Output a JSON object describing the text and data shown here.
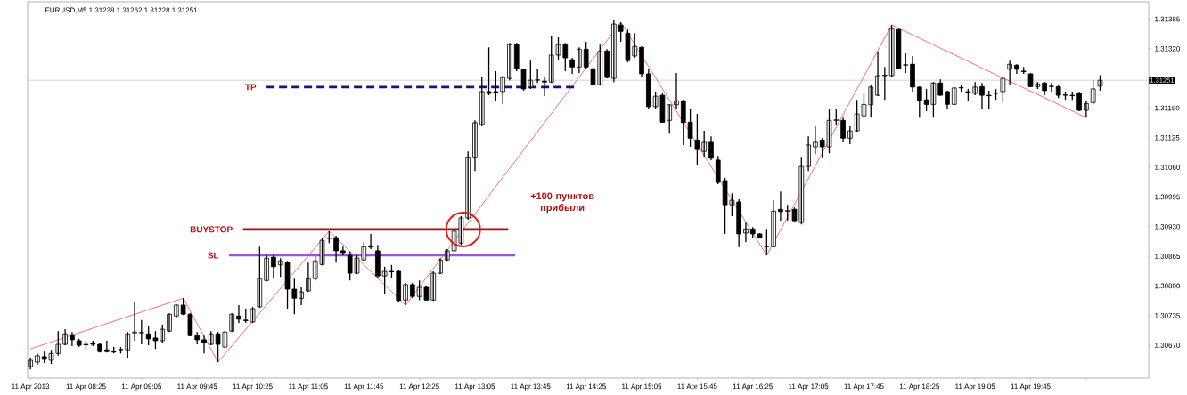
{
  "chart_data": {
    "type": "candlestick",
    "title": "EURUSD,M5 1.31238 1.31262 1.31228 1.31251",
    "x": [
      "2013-04-11T07:45",
      "2013-04-11T07:50",
      "2013-04-11T07:55",
      "2013-04-11T08:00",
      "2013-04-11T08:05",
      "2013-04-11T08:10",
      "2013-04-11T08:15",
      "2013-04-11T08:20",
      "2013-04-11T08:25",
      "2013-04-11T08:30",
      "2013-04-11T08:35",
      "2013-04-11T08:40",
      "2013-04-11T08:45",
      "2013-04-11T08:50",
      "2013-04-11T08:55",
      "2013-04-11T09:00",
      "2013-04-11T09:05",
      "2013-04-11T09:10",
      "2013-04-11T09:15",
      "2013-04-11T09:20",
      "2013-04-11T09:25",
      "2013-04-11T09:30",
      "2013-04-11T09:35",
      "2013-04-11T09:40",
      "2013-04-11T09:45",
      "2013-04-11T09:50",
      "2013-04-11T09:55",
      "2013-04-11T10:00",
      "2013-04-11T10:05",
      "2013-04-11T10:10",
      "2013-04-11T10:15",
      "2013-04-11T10:20",
      "2013-04-11T10:25",
      "2013-04-11T10:30",
      "2013-04-11T10:35",
      "2013-04-11T10:40",
      "2013-04-11T10:45",
      "2013-04-11T10:50",
      "2013-04-11T10:55",
      "2013-04-11T11:00",
      "2013-04-11T11:05",
      "2013-04-11T11:10",
      "2013-04-11T11:15",
      "2013-04-11T11:20",
      "2013-04-11T11:25",
      "2013-04-11T11:30",
      "2013-04-11T11:35",
      "2013-04-11T11:40",
      "2013-04-11T11:45",
      "2013-04-11T11:50",
      "2013-04-11T11:55",
      "2013-04-11T12:00",
      "2013-04-11T12:05",
      "2013-04-11T12:10",
      "2013-04-11T12:15",
      "2013-04-11T12:20",
      "2013-04-11T12:25",
      "2013-04-11T12:30",
      "2013-04-11T12:35",
      "2013-04-11T12:40",
      "2013-04-11T12:45",
      "2013-04-11T12:50",
      "2013-04-11T12:55",
      "2013-04-11T13:00",
      "2013-04-11T13:05",
      "2013-04-11T13:10",
      "2013-04-11T13:15",
      "2013-04-11T13:20",
      "2013-04-11T13:25",
      "2013-04-11T13:30",
      "2013-04-11T13:35",
      "2013-04-11T13:40",
      "2013-04-11T13:45",
      "2013-04-11T13:50",
      "2013-04-11T13:55",
      "2013-04-11T14:00",
      "2013-04-11T14:05",
      "2013-04-11T14:10",
      "2013-04-11T14:15",
      "2013-04-11T14:20",
      "2013-04-11T14:25",
      "2013-04-11T14:30",
      "2013-04-11T14:35",
      "2013-04-11T14:40",
      "2013-04-11T14:45",
      "2013-04-11T14:50",
      "2013-04-11T14:55",
      "2013-04-11T15:00",
      "2013-04-11T15:05",
      "2013-04-11T15:10",
      "2013-04-11T15:15",
      "2013-04-11T15:20",
      "2013-04-11T15:25",
      "2013-04-11T15:30",
      "2013-04-11T15:35",
      "2013-04-11T15:40",
      "2013-04-11T15:45",
      "2013-04-11T15:50",
      "2013-04-11T15:55",
      "2013-04-11T16:00",
      "2013-04-11T16:05",
      "2013-04-11T16:10",
      "2013-04-11T16:15",
      "2013-04-11T16:20",
      "2013-04-11T16:25",
      "2013-04-11T16:30",
      "2013-04-11T16:35",
      "2013-04-11T16:40",
      "2013-04-11T16:45",
      "2013-04-11T16:50",
      "2013-04-11T16:55",
      "2013-04-11T17:00",
      "2013-04-11T17:05",
      "2013-04-11T17:10",
      "2013-04-11T17:15",
      "2013-04-11T17:20",
      "2013-04-11T17:25",
      "2013-04-11T17:30",
      "2013-04-11T17:35",
      "2013-04-11T17:40",
      "2013-04-11T17:45",
      "2013-04-11T17:50",
      "2013-04-11T17:55",
      "2013-04-11T18:00",
      "2013-04-11T18:05",
      "2013-04-11T18:10",
      "2013-04-11T18:15",
      "2013-04-11T18:20",
      "2013-04-11T18:25",
      "2013-04-11T18:30",
      "2013-04-11T18:35",
      "2013-04-11T18:40",
      "2013-04-11T18:45",
      "2013-04-11T18:50",
      "2013-04-11T18:55",
      "2013-04-11T19:00",
      "2013-04-11T19:05",
      "2013-04-11T19:10",
      "2013-04-11T19:15",
      "2013-04-11T19:20",
      "2013-04-11T19:25",
      "2013-04-11T19:30",
      "2013-04-11T19:35",
      "2013-04-11T19:40",
      "2013-04-11T19:45",
      "2013-04-11T19:50",
      "2013-04-11T19:55",
      "2013-04-11T20:00",
      "2013-04-11T20:05",
      "2013-04-11T20:10",
      "2013-04-11T20:15",
      "2013-04-11T20:20",
      "2013-04-11T20:25",
      "2013-04-11T20:30",
      "2013-04-11T20:35"
    ],
    "ohlc": [
      [
        1.30623,
        1.30643,
        1.30617,
        1.30637
      ],
      [
        1.30633,
        1.30652,
        1.30627,
        1.30647
      ],
      [
        1.30645,
        1.30656,
        1.30631,
        1.30639
      ],
      [
        1.30637,
        1.3066,
        1.30629,
        1.30652
      ],
      [
        1.30652,
        1.30701,
        1.30647,
        1.30672
      ],
      [
        1.30672,
        1.30705,
        1.3067,
        1.30695
      ],
      [
        1.30693,
        1.30699,
        1.30668,
        1.30682
      ],
      [
        1.3068,
        1.30684,
        1.30666,
        1.3067
      ],
      [
        1.30672,
        1.3068,
        1.3066,
        1.30671
      ],
      [
        1.30674,
        1.3068,
        1.30668,
        1.30672
      ],
      [
        1.30672,
        1.30676,
        1.30654,
        1.30656
      ],
      [
        1.3066,
        1.3068,
        1.30654,
        1.30656
      ],
      [
        1.30656,
        1.30666,
        1.30652,
        1.30655
      ],
      [
        1.3066,
        1.30666,
        1.30652,
        1.30661
      ],
      [
        1.3066,
        1.30699,
        1.30643,
        1.30695
      ],
      [
        1.30697,
        1.30766,
        1.3068,
        1.30699
      ],
      [
        1.30697,
        1.30725,
        1.30672,
        1.30698
      ],
      [
        1.30695,
        1.30711,
        1.3067,
        1.30684
      ],
      [
        1.30686,
        1.30701,
        1.30662,
        1.3068
      ],
      [
        1.3068,
        1.30715,
        1.30676,
        1.30705
      ],
      [
        1.30701,
        1.3074,
        1.30699,
        1.30738
      ],
      [
        1.30734,
        1.3076,
        1.3073,
        1.30758
      ],
      [
        1.30758,
        1.30773,
        1.30736,
        1.30738
      ],
      [
        1.30738,
        1.3074,
        1.3069,
        1.30691
      ],
      [
        1.30691,
        1.30699,
        1.30672,
        1.30682
      ],
      [
        1.30682,
        1.30691,
        1.30652,
        1.30676
      ],
      [
        1.30672,
        1.30701,
        1.3067,
        1.30695
      ],
      [
        1.30695,
        1.30699,
        1.30633,
        1.30672
      ],
      [
        1.30666,
        1.30701,
        1.30664,
        1.30699
      ],
      [
        1.30701,
        1.3074,
        1.30699,
        1.30738
      ],
      [
        1.30734,
        1.30758,
        1.30719,
        1.30727
      ],
      [
        1.30725,
        1.3075,
        1.30719,
        1.30724
      ],
      [
        1.30721,
        1.30754,
        1.30719,
        1.3075
      ],
      [
        1.30754,
        1.30886,
        1.30752,
        1.30816
      ],
      [
        1.30812,
        1.30867,
        1.3081,
        1.30861
      ],
      [
        1.30863,
        1.30867,
        1.30816,
        1.30842
      ],
      [
        1.30846,
        1.30861,
        1.3082,
        1.30855
      ],
      [
        1.30851,
        1.30855,
        1.3075,
        1.30793
      ],
      [
        1.30793,
        1.30816,
        1.30738,
        1.30773
      ],
      [
        1.30773,
        1.30797,
        1.30758,
        1.30787
      ],
      [
        1.30789,
        1.30851,
        1.30787,
        1.30816
      ],
      [
        1.30816,
        1.30865,
        1.30812,
        1.30855
      ],
      [
        1.30847,
        1.30906,
        1.30845,
        1.309
      ],
      [
        1.30904,
        1.3092,
        1.30894,
        1.30905
      ],
      [
        1.30906,
        1.3091,
        1.30851,
        1.30877
      ],
      [
        1.30877,
        1.30886,
        1.30867,
        1.30873
      ],
      [
        1.30867,
        1.30875,
        1.30812,
        1.30828
      ],
      [
        1.30828,
        1.30867,
        1.30826,
        1.30861
      ],
      [
        1.30857,
        1.30896,
        1.30855,
        1.30886
      ],
      [
        1.30888,
        1.30914,
        1.30881,
        1.30885
      ],
      [
        1.30877,
        1.3089,
        1.30818,
        1.30822
      ],
      [
        1.30822,
        1.30842,
        1.30783,
        1.30832
      ],
      [
        1.30832,
        1.30846,
        1.30818,
        1.30831
      ],
      [
        1.30832,
        1.30836,
        1.30764,
        1.30768
      ],
      [
        1.30769,
        1.30807,
        1.30758,
        1.30803
      ],
      [
        1.30803,
        1.30807,
        1.30773,
        1.30777
      ],
      [
        1.30777,
        1.30812,
        1.30769,
        1.30797
      ],
      [
        1.30797,
        1.30799,
        1.30768,
        1.30769
      ],
      [
        1.30769,
        1.30832,
        1.30767,
        1.30828
      ],
      [
        1.30828,
        1.30861,
        1.30826,
        1.30857
      ],
      [
        1.30857,
        1.30881,
        1.30855,
        1.30877
      ],
      [
        1.30877,
        1.30925,
        1.30875,
        1.3092
      ],
      [
        1.30894,
        1.30953,
        1.3089,
        1.30949
      ],
      [
        1.30949,
        1.31095,
        1.30945,
        1.31081
      ],
      [
        1.31081,
        1.31163,
        1.31052,
        1.31158
      ],
      [
        1.31154,
        1.31257,
        1.3115,
        1.31226
      ],
      [
        1.31226,
        1.31323,
        1.31218,
        1.31222
      ],
      [
        1.31226,
        1.31271,
        1.31206,
        1.31224
      ],
      [
        1.31226,
        1.31261,
        1.31198,
        1.31257
      ],
      [
        1.31255,
        1.31333,
        1.31251,
        1.31329
      ],
      [
        1.31329,
        1.31333,
        1.31271,
        1.31276
      ],
      [
        1.31275,
        1.31276,
        1.31228,
        1.31232
      ],
      [
        1.31236,
        1.31294,
        1.31232,
        1.31251
      ],
      [
        1.31251,
        1.31276,
        1.31245,
        1.31252
      ],
      [
        1.31249,
        1.31257,
        1.31216,
        1.31247
      ],
      [
        1.31247,
        1.31349,
        1.31245,
        1.31306
      ],
      [
        1.31306,
        1.31345,
        1.31294,
        1.31329
      ],
      [
        1.31329,
        1.31333,
        1.31271,
        1.313
      ],
      [
        1.31296,
        1.313,
        1.31265,
        1.3128
      ],
      [
        1.3128,
        1.31323,
        1.31267,
        1.31319
      ],
      [
        1.31319,
        1.31335,
        1.31276,
        1.3128
      ],
      [
        1.31276,
        1.3128,
        1.31239,
        1.31241
      ],
      [
        1.31241,
        1.31329,
        1.31239,
        1.31314
      ],
      [
        1.31315,
        1.31319,
        1.31255,
        1.31257
      ],
      [
        1.31255,
        1.31382,
        1.31247,
        1.31374
      ],
      [
        1.31372,
        1.31378,
        1.31335,
        1.31358
      ],
      [
        1.31354,
        1.31362,
        1.3129,
        1.31294
      ],
      [
        1.31304,
        1.31354,
        1.313,
        1.31325
      ],
      [
        1.31323,
        1.31325,
        1.31257,
        1.31265
      ],
      [
        1.31265,
        1.31275,
        1.31187,
        1.31193
      ],
      [
        1.31193,
        1.31226,
        1.31189,
        1.31216
      ],
      [
        1.31218,
        1.31222,
        1.31158,
        1.31159
      ],
      [
        1.31163,
        1.31198,
        1.31134,
        1.31197
      ],
      [
        1.31197,
        1.31267,
        1.31187,
        1.31206
      ],
      [
        1.31206,
        1.31208,
        1.31109,
        1.31158
      ],
      [
        1.31159,
        1.31189,
        1.31105,
        1.31124
      ],
      [
        1.3112,
        1.31177,
        1.31066,
        1.31099
      ],
      [
        1.31095,
        1.3114,
        1.31081,
        1.31115
      ],
      [
        1.31115,
        1.31128,
        1.31076,
        1.3108
      ],
      [
        1.31076,
        1.31085,
        1.31023,
        1.31027
      ],
      [
        1.31031,
        1.31037,
        1.30914,
        1.30978
      ],
      [
        1.30978,
        1.31003,
        1.30953,
        1.30988
      ],
      [
        1.30984,
        1.3099,
        1.30885,
        1.30914
      ],
      [
        1.30916,
        1.30939,
        1.30896,
        1.30925
      ],
      [
        1.30925,
        1.30929,
        1.30906,
        1.30914
      ],
      [
        1.30914,
        1.30916,
        1.30904,
        1.30906
      ],
      [
        1.30886,
        1.30925,
        1.30867,
        1.30887
      ],
      [
        1.30886,
        1.30988,
        1.30885,
        1.30964
      ],
      [
        1.30968,
        1.31007,
        1.30943,
        1.30963
      ],
      [
        1.30964,
        1.30978,
        1.30943,
        1.30965
      ],
      [
        1.30968,
        1.30972,
        1.30939,
        1.30943
      ],
      [
        1.30939,
        1.31081,
        1.30935,
        1.31062
      ],
      [
        1.31062,
        1.31128,
        1.31052,
        1.31109
      ],
      [
        1.31105,
        1.3115,
        1.31089,
        1.31115
      ],
      [
        1.3112,
        1.31124,
        1.3108,
        1.31105
      ],
      [
        1.31105,
        1.31187,
        1.31091,
        1.31163
      ],
      [
        1.31163,
        1.31187,
        1.31154,
        1.31164
      ],
      [
        1.31163,
        1.31169,
        1.31115,
        1.31124
      ],
      [
        1.31124,
        1.3115,
        1.31111,
        1.3114
      ],
      [
        1.3114,
        1.31208,
        1.31138,
        1.31177
      ],
      [
        1.31173,
        1.31222,
        1.31169,
        1.31198
      ],
      [
        1.31197,
        1.31241,
        1.31169,
        1.31236
      ],
      [
        1.31218,
        1.31314,
        1.31216,
        1.31261
      ],
      [
        1.31261,
        1.3128,
        1.31208,
        1.31262
      ],
      [
        1.31261,
        1.31372,
        1.31257,
        1.31364
      ],
      [
        1.31362,
        1.31364,
        1.31275,
        1.31276
      ],
      [
        1.31284,
        1.3131,
        1.31267,
        1.31285
      ],
      [
        1.31286,
        1.31304,
        1.31226,
        1.31236
      ],
      [
        1.31236,
        1.31237,
        1.31169,
        1.31206
      ],
      [
        1.31208,
        1.31232,
        1.31183,
        1.31198
      ],
      [
        1.31198,
        1.31247,
        1.31169,
        1.31245
      ],
      [
        1.31245,
        1.31253,
        1.31217,
        1.31218
      ],
      [
        1.31226,
        1.31228,
        1.31187,
        1.31198
      ],
      [
        1.31198,
        1.31236,
        1.31197,
        1.31234
      ],
      [
        1.31234,
        1.31241,
        1.31226,
        1.31235
      ],
      [
        1.31226,
        1.31232,
        1.31206,
        1.31224
      ],
      [
        1.31222,
        1.31247,
        1.31218,
        1.31236
      ],
      [
        1.31237,
        1.31245,
        1.31187,
        1.31218
      ],
      [
        1.31218,
        1.31228,
        1.31187,
        1.31217
      ],
      [
        1.31222,
        1.31232,
        1.31208,
        1.31223
      ],
      [
        1.31226,
        1.31257,
        1.31202,
        1.31255
      ],
      [
        1.31275,
        1.31294,
        1.31241,
        1.31286
      ],
      [
        1.31284,
        1.31286,
        1.31265,
        1.31275
      ],
      [
        1.31271,
        1.3128,
        1.31265,
        1.3127
      ],
      [
        1.31265,
        1.31267,
        1.31236,
        1.31237
      ],
      [
        1.31237,
        1.31247,
        1.31232,
        1.31243
      ],
      [
        1.31245,
        1.31247,
        1.31218,
        1.31228
      ],
      [
        1.31237,
        1.31245,
        1.31226,
        1.31238
      ],
      [
        1.31237,
        1.31241,
        1.31212,
        1.31218
      ],
      [
        1.31218,
        1.31226,
        1.31208,
        1.31219
      ],
      [
        1.31218,
        1.31226,
        1.31208,
        1.31217
      ],
      [
        1.31222,
        1.31226,
        1.31183,
        1.31185
      ],
      [
        1.31185,
        1.31206,
        1.31169,
        1.312
      ],
      [
        1.31202,
        1.31251,
        1.31198,
        1.31232
      ],
      [
        1.31238,
        1.31262,
        1.31228,
        1.31251
      ]
    ],
    "series": [
      {
        "type": "line",
        "color": "#ff4a4a",
        "x": [
          "2013-04-11T07:45",
          "2013-04-11T09:35",
          "2013-04-11T10:00",
          "2013-04-11T11:20",
          "2013-04-11T12:15",
          "2013-04-11T14:50",
          "2013-04-11T16:35",
          "2013-04-11T18:05",
          "2013-04-11T20:25"
        ],
        "values": [
          1.30662,
          1.30773,
          1.30633,
          1.3092,
          1.30758,
          1.31378,
          1.30867,
          1.31372,
          1.31169
        ]
      },
      {
        "type": "line",
        "name": "TP",
        "color": "#14147a",
        "line_style": "dashed",
        "x": [
          "2013-04-11T10:35",
          "2013-04-11T14:17"
        ],
        "values": [
          1.31236,
          1.31236
        ]
      },
      {
        "type": "line",
        "name": "BUYSTOP",
        "color": "#a01414",
        "x": [
          "2013-04-11T10:18",
          "2013-04-11T13:29"
        ],
        "values": [
          1.30924,
          1.30924
        ]
      },
      {
        "type": "line",
        "name": "SL",
        "color": "#9b55d6",
        "x": [
          "2013-04-11T10:08",
          "2013-04-11T13:34"
        ],
        "values": [
          1.30867,
          1.30867
        ]
      }
    ],
    "ref_lines": [
      {
        "axis": "y",
        "value": 1.31251,
        "label": "1.31251",
        "color": "#c8c8c8"
      }
    ],
    "annotations": [
      "+100 пунктов прибыли"
    ],
    "xlim": [
      "2013-04-11T07:43",
      "2013-04-11T21:10"
    ],
    "ylim": [
      1.30598,
      1.31423
    ],
    "xticks": [
      {
        "value": "2013-04-11T07:45",
        "label": "11 Apr 2013"
      },
      {
        "value": "2013-04-11T08:25",
        "label": "11 Apr 08:25"
      },
      {
        "value": "2013-04-11T09:05",
        "label": "11 Apr 09:05"
      },
      {
        "value": "2013-04-11T09:45",
        "label": "11 Apr 09:45"
      },
      {
        "value": "2013-04-11T10:25",
        "label": "11 Apr 10:25"
      },
      {
        "value": "2013-04-11T11:05",
        "label": "11 Apr 11:05"
      },
      {
        "value": "2013-04-11T11:45",
        "label": "11 Apr 11:45"
      },
      {
        "value": "2013-04-11T12:25",
        "label": "11 Apr 12:25"
      },
      {
        "value": "2013-04-11T13:05",
        "label": "11 Apr 13:05"
      },
      {
        "value": "2013-04-11T13:45",
        "label": "11 Apr 13:45"
      },
      {
        "value": "2013-04-11T14:25",
        "label": "11 Apr 14:25"
      },
      {
        "value": "2013-04-11T15:05",
        "label": "11 Apr 15:05"
      },
      {
        "value": "2013-04-11T15:45",
        "label": "11 Apr 15:45"
      },
      {
        "value": "2013-04-11T16:25",
        "label": "11 Apr 16:25"
      },
      {
        "value": "2013-04-11T17:05",
        "label": "11 Apr 17:05"
      },
      {
        "value": "2013-04-11T17:45",
        "label": "11 Apr 17:45"
      },
      {
        "value": "2013-04-11T18:25",
        "label": "11 Apr 18:25"
      },
      {
        "value": "2013-04-11T19:05",
        "label": "11 Apr 19:05"
      },
      {
        "value": "2013-04-11T19:45",
        "label": "11 Apr 19:45"
      },
      {
        "value": "2013-04-11T20:25",
        "label": null
      }
    ],
    "yticks": [
      {
        "value": 1.3067,
        "label": "1.30670"
      },
      {
        "value": 1.30735,
        "label": "1.30735"
      },
      {
        "value": 1.308,
        "label": "1.30800"
      },
      {
        "value": 1.30865,
        "label": "1.30865"
      },
      {
        "value": 1.3093,
        "label": "1.30930"
      },
      {
        "value": 1.30995,
        "label": "1.30995"
      },
      {
        "value": 1.3106,
        "label": "1.31060"
      },
      {
        "value": 1.31125,
        "label": "1.31125"
      },
      {
        "value": 1.3119,
        "label": "1.31190"
      },
      {
        "value": 1.3132,
        "label": "1.31320"
      },
      {
        "value": 1.31385,
        "label": "1.31385"
      }
    ]
  }
}
